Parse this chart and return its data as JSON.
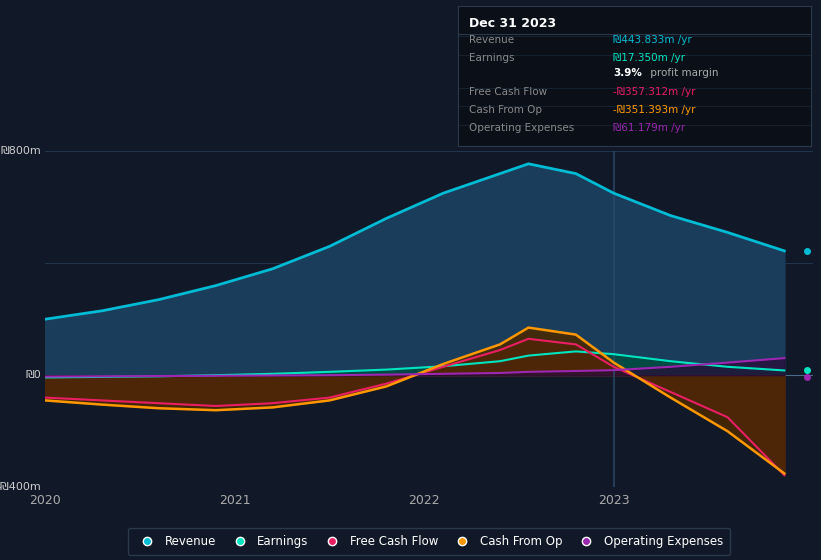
{
  "background_color": "#111827",
  "chart_bg_color": "#111827",
  "years": [
    2020.0,
    2020.3,
    2020.6,
    2020.9,
    2021.2,
    2021.5,
    2021.8,
    2022.1,
    2022.4,
    2022.55,
    2022.8,
    2023.0,
    2023.3,
    2023.6,
    2023.9
  ],
  "revenue": [
    200,
    230,
    270,
    320,
    380,
    460,
    560,
    650,
    720,
    755,
    720,
    650,
    570,
    510,
    444
  ],
  "earnings": [
    -8,
    -6,
    -4,
    0,
    5,
    12,
    20,
    32,
    50,
    70,
    85,
    75,
    50,
    30,
    17
  ],
  "free_cash_flow": [
    -80,
    -90,
    -100,
    -110,
    -100,
    -80,
    -30,
    30,
    90,
    130,
    110,
    30,
    -60,
    -150,
    -357
  ],
  "cash_from_op": [
    -90,
    -105,
    -118,
    -125,
    -115,
    -90,
    -40,
    40,
    110,
    170,
    145,
    45,
    -80,
    -200,
    -351
  ],
  "operating_expenses": [
    -5,
    -4,
    -3,
    -2,
    -1,
    0,
    2,
    5,
    8,
    12,
    15,
    18,
    30,
    45,
    61
  ],
  "revenue_color": "#00bcd4",
  "revenue_fill": "#1a3d5c",
  "earnings_color": "#00e5c0",
  "earnings_fill": "#004d40",
  "free_cash_flow_color": "#e91e63",
  "free_cash_flow_fill": "#6d1a30",
  "cash_from_op_color": "#ff9800",
  "cash_from_op_fill": "#4a2800",
  "operating_expenses_color": "#9c27b0",
  "operating_expenses_fill": "#2a0a3a",
  "vline_x": 2023.0,
  "vline_color": "#2a4a6a",
  "ylim": [
    -400,
    800
  ],
  "ylabel_800": "₪800m",
  "ylabel_0": "₪0",
  "ylabel_neg400": "-₪400m",
  "xlim": [
    2020,
    2024.05
  ],
  "xticks": [
    2020,
    2021,
    2022,
    2023
  ],
  "legend_items": [
    {
      "label": "Revenue",
      "color": "#00bcd4"
    },
    {
      "label": "Earnings",
      "color": "#00e5c0"
    },
    {
      "label": "Free Cash Flow",
      "color": "#e91e63"
    },
    {
      "label": "Cash From Op",
      "color": "#ff9800"
    },
    {
      "label": "Operating Expenses",
      "color": "#9c27b0"
    }
  ],
  "infobox_title": "Dec 31 2023",
  "infobox_rows": [
    {
      "label": "Revenue",
      "value": "₪443.833m /yr",
      "value_color": "#00bcd4"
    },
    {
      "label": "Earnings",
      "value": "₪17.350m /yr",
      "value_color": "#00e5c0"
    },
    {
      "label": "",
      "value": "3.9% profit margin",
      "value_color": "#aaaaaa"
    },
    {
      "label": "Free Cash Flow",
      "value": "-₪357.312m /yr",
      "value_color": "#e91e63"
    },
    {
      "label": "Cash From Op",
      "value": "-₪351.393m /yr",
      "value_color": "#ff9800"
    },
    {
      "label": "Operating Expenses",
      "value": "₪61.179m /yr",
      "value_color": "#9c27b0"
    }
  ]
}
